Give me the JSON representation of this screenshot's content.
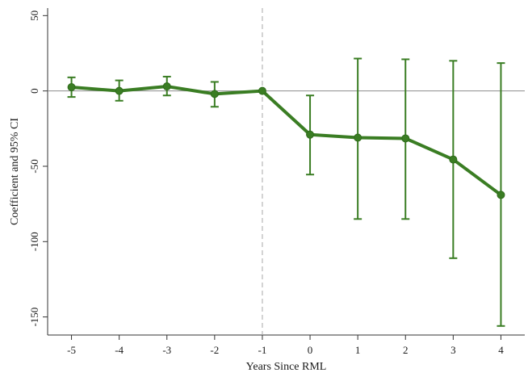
{
  "chart_data": {
    "type": "line",
    "title": "",
    "xlabel": "Years Since RML",
    "ylabel": "Coefficient and 95% CI",
    "x": [
      -5,
      -4,
      -3,
      -2,
      -1,
      0,
      1,
      2,
      3,
      4
    ],
    "x_tick_labels": [
      "-5",
      "-4",
      "-3",
      "-2",
      "-1",
      "0",
      "1",
      "2",
      "3",
      "4"
    ],
    "y_ticks": [
      50,
      0,
      -50,
      -100,
      -150
    ],
    "y_tick_labels": [
      "50",
      "0",
      "-50",
      "-100",
      "-150"
    ],
    "xlim": [
      -5.5,
      4.5
    ],
    "ylim": [
      -162,
      55
    ],
    "series": [
      {
        "estimate": [
          2.5,
          0,
          3,
          -2,
          0,
          -29,
          -31,
          -31.5,
          -45.5,
          -69
        ],
        "ci_lower": [
          -4,
          -6.5,
          -3,
          -10.5,
          0,
          -55.5,
          -85,
          -85,
          -111,
          -156
        ],
        "ci_upper": [
          9,
          7,
          9.5,
          6,
          0,
          -3,
          21.5,
          21,
          20,
          18.5
        ]
      }
    ],
    "reference_lines": {
      "horizontal_y": 0,
      "vertical_x": -1
    },
    "grid": false,
    "colors": {
      "series": "#3a7d23",
      "reference_horizontal": "#8c8c8c",
      "reference_vertical": "#a8a8a8",
      "axis": "#333333",
      "text": "#1a1a1a"
    }
  }
}
